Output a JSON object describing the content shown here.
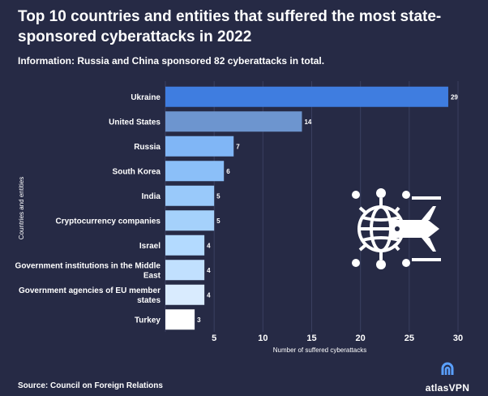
{
  "header": {
    "title": "Top 10 countries and entities that suffered the most state-sponsored cyberattacks in 2022",
    "subtitle": "Information: Russia and China sponsored 82 cyberattacks in total."
  },
  "footer": {
    "source": "Source: Council on Foreign Relations",
    "brand": "atlasVPN"
  },
  "colors": {
    "background": "#262a45",
    "bars": [
      "#3f7de0",
      "#6d95cf",
      "#80b6f6",
      "#8bbff8",
      "#99c9fa",
      "#a5d1fb",
      "#b3daff",
      "#c1e0fe",
      "#d9ebfe",
      "#ffffff"
    ]
  },
  "chart_data": {
    "type": "bar",
    "orientation": "horizontal",
    "categories": [
      "Ukraine",
      "United States",
      "Russia",
      "South Korea",
      "India",
      "Cryptocurrency companies",
      "Israel",
      "Government institutions in the Middle East",
      "Government agencies of EU member states",
      "Turkey"
    ],
    "category_lines": [
      [
        "Ukraine"
      ],
      [
        "United States"
      ],
      [
        "Russia"
      ],
      [
        "South Korea"
      ],
      [
        "India"
      ],
      [
        "Cryptocurrency companies"
      ],
      [
        "Israel"
      ],
      [
        "Government institutions in the Middle",
        "East"
      ],
      [
        "Government agencies of EU member",
        "states"
      ],
      [
        "Turkey"
      ]
    ],
    "values": [
      29,
      14,
      7,
      6,
      5,
      5,
      4,
      4,
      4,
      3
    ],
    "value_labels": [
      "29",
      "14",
      "7",
      "6",
      "5",
      "5",
      "4",
      "4",
      "4",
      "3"
    ],
    "xlabel": "Number of suffered cyberattacks",
    "ylabel": "Countries and entities",
    "xlim": [
      0,
      30
    ],
    "xticks": [
      5,
      10,
      15,
      20,
      25,
      30
    ],
    "grid": true
  }
}
